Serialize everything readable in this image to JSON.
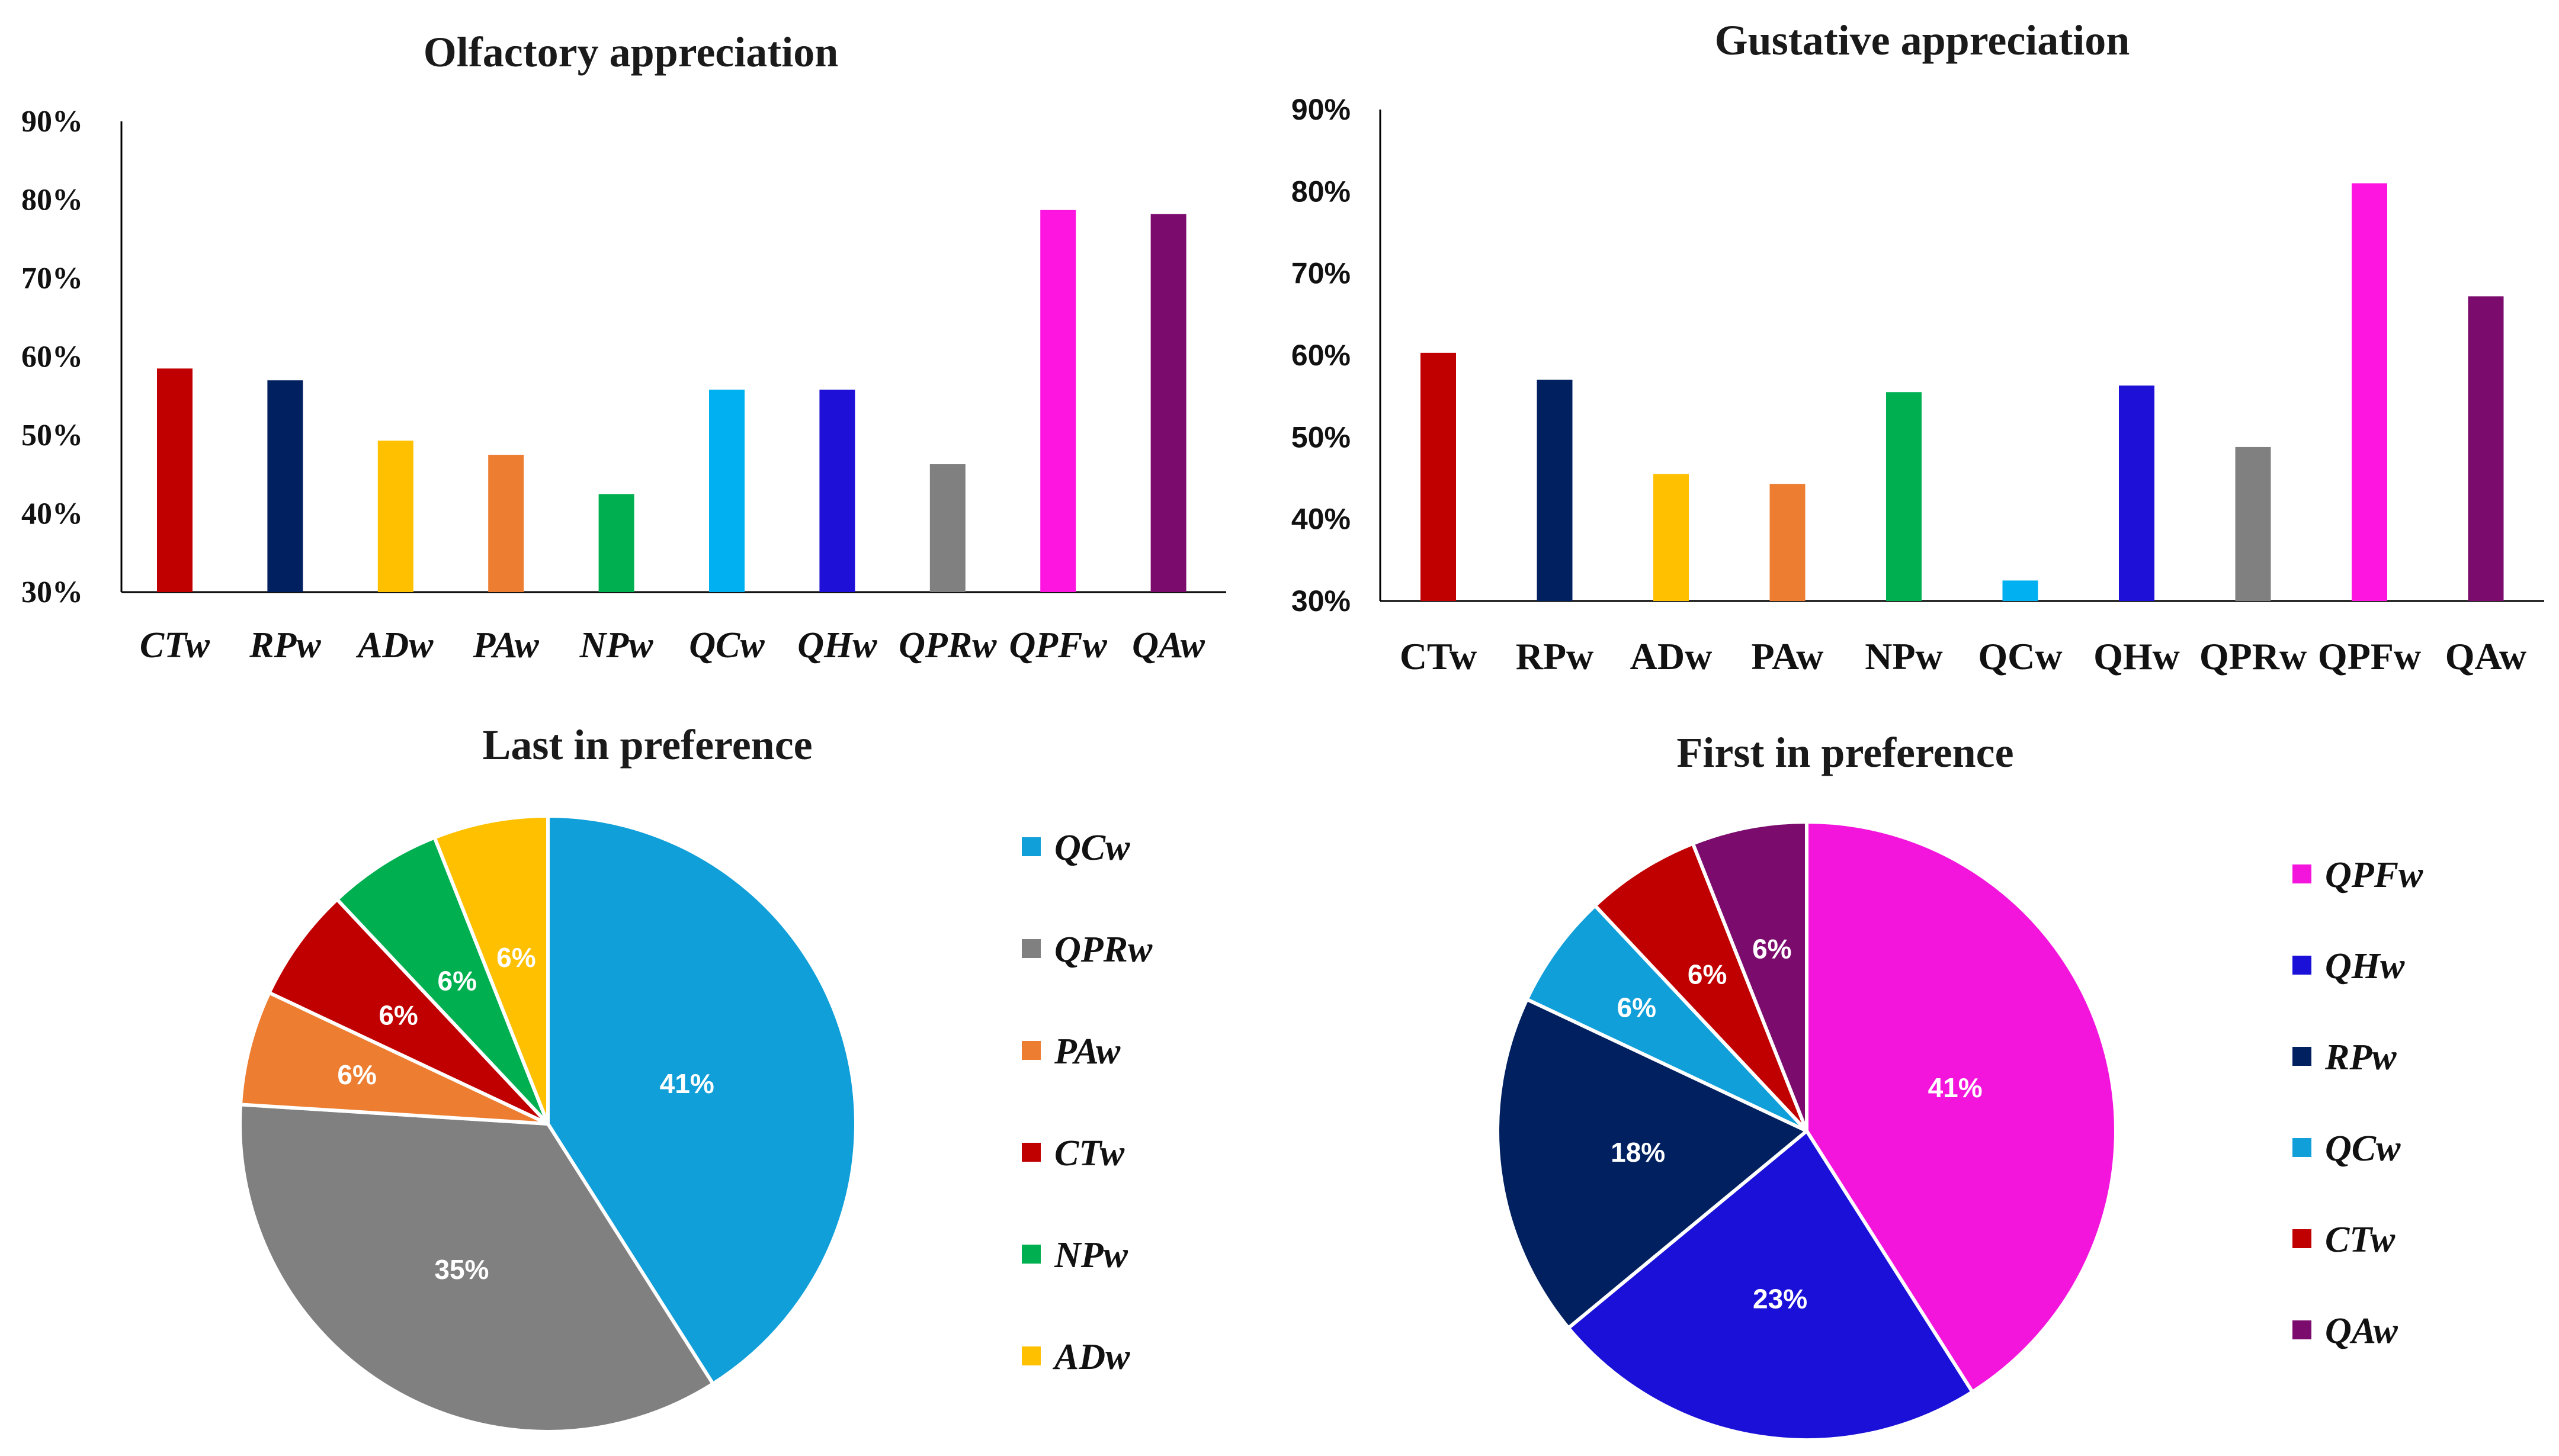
{
  "chart_data": [
    {
      "type": "bar",
      "title": "Olfactory appreciation",
      "categories": [
        "CTw",
        "RPw",
        "ADw",
        "PAw",
        "NPw",
        "QCw",
        "QHw",
        "QPRw",
        "QPFw",
        "QAw"
      ],
      "values": [
        58.5,
        57,
        49.3,
        47.5,
        42.5,
        55.8,
        55.8,
        46.3,
        78.7,
        78.2
      ],
      "colors": [
        "#c00000",
        "#002060",
        "#ffc000",
        "#ed7d31",
        "#00b050",
        "#00b0f0",
        "#1f10d8",
        "#808080",
        "#ff15e0",
        "#7b0c6e"
      ],
      "ylim": [
        30,
        90
      ],
      "yticks": [
        "30%",
        "40%",
        "50%",
        "60%",
        "70%",
        "80%",
        "90%"
      ],
      "xlabel": "",
      "ylabel": ""
    },
    {
      "type": "bar",
      "title": "Gustative appreciation",
      "categories": [
        "CTw",
        "RPw",
        "ADw",
        "PAw",
        "NPw",
        "QCw",
        "QHw",
        "QPRw",
        "QPFw",
        "QAw"
      ],
      "values": [
        60.3,
        57,
        45.5,
        44.3,
        55.5,
        32.5,
        56.3,
        48.8,
        81,
        67.2
      ],
      "colors": [
        "#c00000",
        "#002060",
        "#ffc000",
        "#ed7d31",
        "#00b050",
        "#00b0f0",
        "#1f10d8",
        "#808080",
        "#ff15e0",
        "#7b0c6e"
      ],
      "ylim": [
        30,
        90
      ],
      "yticks": [
        "30%",
        "40%",
        "50%",
        "60%",
        "70%",
        "80%",
        "90%"
      ],
      "xlabel": "",
      "ylabel": ""
    },
    {
      "type": "pie",
      "title": "Last in preference",
      "slices": [
        {
          "label": "QCw",
          "value": 41,
          "text": "41%",
          "color": "#109fd8"
        },
        {
          "label": "QPRw",
          "value": 35,
          "text": "35%",
          "color": "#808080"
        },
        {
          "label": "PAw",
          "value": 6,
          "text": "6%",
          "color": "#ed7d31"
        },
        {
          "label": "CTw",
          "value": 6,
          "text": "6%",
          "color": "#c00000"
        },
        {
          "label": "NPw",
          "value": 6,
          "text": "6%",
          "color": "#00b050"
        },
        {
          "label": "ADw",
          "value": 6,
          "text": "6%",
          "color": "#ffc000"
        }
      ],
      "legend": [
        "QCw",
        "QPRw",
        "PAw",
        "CTw",
        "NPw",
        "ADw"
      ],
      "legend_position": "right"
    },
    {
      "type": "pie",
      "title": "First in preference",
      "slices": [
        {
          "label": "QPFw",
          "value": 41,
          "text": "41%",
          "color": "#f415dc"
        },
        {
          "label": "QHw",
          "value": 23,
          "text": "23%",
          "color": "#1a10d8"
        },
        {
          "label": "RPw",
          "value": 18,
          "text": "18%",
          "color": "#002060"
        },
        {
          "label": "QCw",
          "value": 6,
          "text": "6%",
          "color": "#109fd8"
        },
        {
          "label": "CTw",
          "value": 6,
          "text": "6%",
          "color": "#c00000"
        },
        {
          "label": "QAw",
          "value": 6,
          "text": "6%",
          "color": "#7b0c6e"
        }
      ],
      "legend": [
        "QPFw",
        "QHw",
        "RPw",
        "QCw",
        "CTw",
        "QAw"
      ],
      "legend_position": "right"
    }
  ]
}
